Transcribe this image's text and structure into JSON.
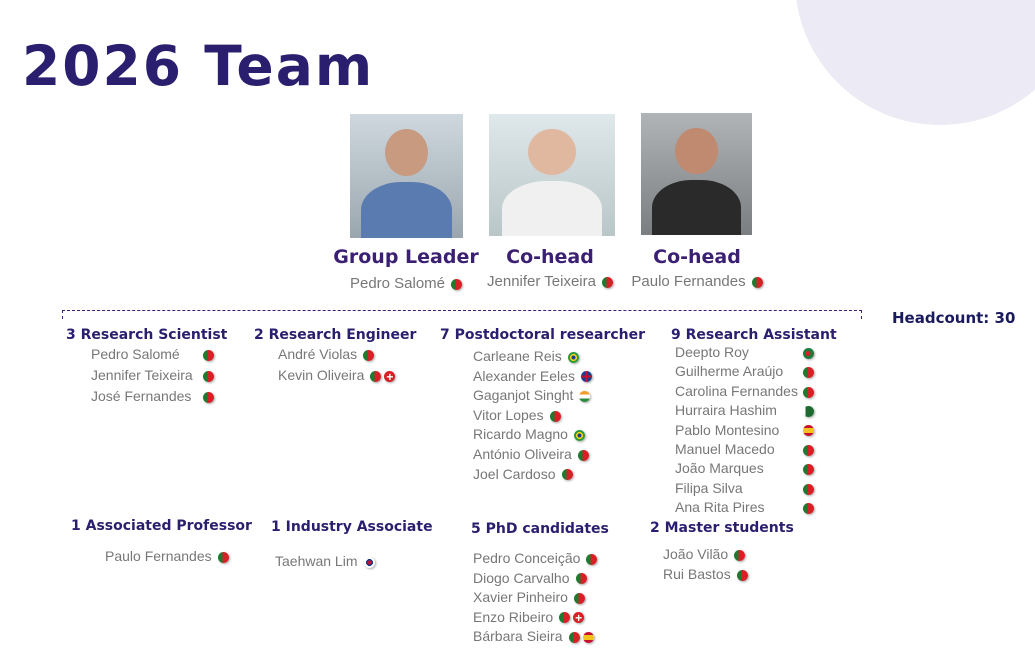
{
  "title": "2026 Team",
  "headcount": "Headcount: 30",
  "leaders": [
    {
      "role": "Group Leader",
      "name": "Pedro Salomé",
      "flags": [
        "pt"
      ]
    },
    {
      "role": "Co-head",
      "name": "Jennifer Teixeira",
      "flags": [
        "pt"
      ]
    },
    {
      "role": "Co-head",
      "name": "Paulo Fernandes",
      "flags": [
        "pt"
      ]
    }
  ],
  "groups": [
    {
      "id": "rs",
      "title": "3  Research Scientist",
      "members": [
        {
          "name": "Pedro Salomé",
          "flags": [
            "pt"
          ]
        },
        {
          "name": "Jennifer Teixeira",
          "flags": [
            "pt"
          ]
        },
        {
          "name": "José Fernandes",
          "flags": [
            "pt"
          ]
        }
      ]
    },
    {
      "id": "re",
      "title": "2 Research Engineer",
      "members": [
        {
          "name": "André Violas",
          "flags": [
            "pt"
          ]
        },
        {
          "name": "Kevin Oliveira",
          "flags": [
            "pt",
            "ch"
          ]
        }
      ]
    },
    {
      "id": "pd",
      "title": "7 Postdoctoral researcher",
      "members": [
        {
          "name": "Carleane Reis",
          "flags": [
            "br"
          ]
        },
        {
          "name": "Alexander Eeles",
          "flags": [
            "gb"
          ]
        },
        {
          "name": "Gaganjot Singht",
          "flags": [
            "in"
          ]
        },
        {
          "name": "Vitor Lopes",
          "flags": [
            "pt"
          ]
        },
        {
          "name": "Ricardo Magno",
          "flags": [
            "br"
          ]
        },
        {
          "name": "António Oliveira",
          "flags": [
            "pt"
          ]
        },
        {
          "name": "Joel Cardoso",
          "flags": [
            "pt"
          ]
        }
      ]
    },
    {
      "id": "ra",
      "title": "9 Research Assistant",
      "members": [
        {
          "name": "Deepto Roy",
          "flags": [
            "bd"
          ]
        },
        {
          "name": "Guilherme Araújo",
          "flags": [
            "pt"
          ]
        },
        {
          "name": "Carolina Fernandes",
          "flags": [
            "pt"
          ]
        },
        {
          "name": "Hurraira Hashim",
          "flags": [
            "pk"
          ]
        },
        {
          "name": "Pablo Montesino",
          "flags": [
            "es"
          ]
        },
        {
          "name": "Manuel Macedo",
          "flags": [
            "pt"
          ]
        },
        {
          "name": "João Marques",
          "flags": [
            "pt"
          ]
        },
        {
          "name": "Filipa Silva",
          "flags": [
            "pt"
          ]
        },
        {
          "name": "Ana Rita Pires",
          "flags": [
            "pt"
          ]
        }
      ]
    },
    {
      "id": "ap",
      "title": "1 Associated Professor",
      "members": [
        {
          "name": "Paulo Fernandes",
          "flags": [
            "pt"
          ]
        }
      ]
    },
    {
      "id": "ia",
      "title": "1 Industry Associate",
      "members": [
        {
          "name": "Taehwan Lim",
          "flags": [
            "kr"
          ]
        }
      ]
    },
    {
      "id": "phd",
      "title": "5 PhD candidates",
      "members": [
        {
          "name": "Pedro Conceição",
          "flags": [
            "pt"
          ]
        },
        {
          "name": "Diogo Carvalho",
          "flags": [
            "pt"
          ]
        },
        {
          "name": "Xavier Pinheiro",
          "flags": [
            "pt"
          ]
        },
        {
          "name": "Enzo Ribeiro",
          "flags": [
            "pt",
            "ch"
          ]
        },
        {
          "name": "Bárbara Sieira",
          "flags": [
            "pt",
            "es"
          ]
        }
      ]
    },
    {
      "id": "ms",
      "title": "2 Master students",
      "members": [
        {
          "name": "João Vilão",
          "flags": [
            "pt"
          ]
        },
        {
          "name": "Rui Bastos",
          "flags": [
            "pt"
          ]
        }
      ]
    }
  ],
  "colors": {
    "title": "#2a1f6e",
    "role": "#3a1f72",
    "name": "#777777",
    "decor": "#ecebf5"
  }
}
